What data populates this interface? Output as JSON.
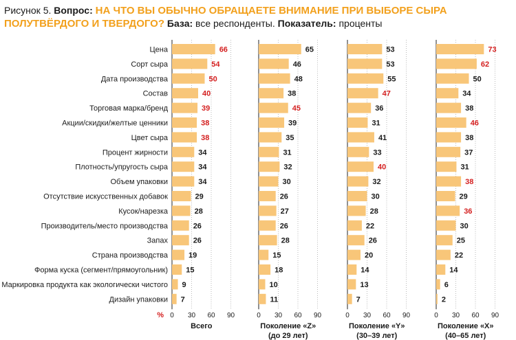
{
  "title": {
    "figure_label": "Рисунок 5.",
    "question_label": "Вопрос:",
    "question_text": "НА ЧТО ВЫ ОБЫЧНО ОБРАЩАЕТЕ ВНИМАНИЕ ПРИ ВЫБОРЕ СЫРА ПОЛУТВЁРДОГО И ТВЕРДОГО?",
    "base_label": "База:",
    "base_text": "все респонденты.",
    "indicator_label": "Показатель:",
    "indicator_text": "проценты"
  },
  "colors": {
    "bar": "#f8c679",
    "highlight": "#d42020",
    "text": "#1a1a1a",
    "heading": "#f2a01c"
  },
  "chart_data": {
    "type": "bar",
    "orientation": "horizontal",
    "unit_label": "%",
    "xlim": [
      0,
      90
    ],
    "ticks": [
      "0",
      "30",
      "60",
      "90"
    ],
    "categories": [
      "Цена",
      "Сорт сыра",
      "Дата производства",
      "Состав",
      "Торговая марка/бренд",
      "Акции/скидки/желтые ценники",
      "Цвет сыра",
      "Процент жирности",
      "Плотность/упругость сыра",
      "Объем упаковки",
      "Отсутствие искусственных добавок",
      "Кусок/нарезка",
      "Производитель/место производства",
      "Запах",
      "Страна производства",
      "Форма куска (сегмент/прямоугольник)",
      "Маркировка продукта как экологически чистого",
      "Дизайн упаковки"
    ],
    "series": [
      {
        "name": "Всего",
        "subtitle": "",
        "values": [
          66,
          54,
          50,
          40,
          39,
          38,
          38,
          34,
          34,
          34,
          29,
          28,
          26,
          26,
          19,
          15,
          9,
          7
        ],
        "highlighted": [
          0,
          1,
          2,
          3,
          4,
          5,
          6
        ]
      },
      {
        "name": "Поколение «Z»",
        "subtitle": "(до 29 лет)",
        "values": [
          65,
          46,
          48,
          38,
          45,
          39,
          35,
          31,
          32,
          30,
          26,
          27,
          26,
          28,
          15,
          18,
          10,
          11
        ],
        "highlighted": [
          4
        ]
      },
      {
        "name": "Поколение «Y»",
        "subtitle": "(30–39 лет)",
        "values": [
          53,
          53,
          55,
          47,
          36,
          31,
          41,
          33,
          40,
          32,
          30,
          28,
          22,
          26,
          20,
          14,
          13,
          7
        ],
        "highlighted": [
          3,
          8
        ]
      },
      {
        "name": "Поколение «X»",
        "subtitle": "(40–65 лет)",
        "values": [
          73,
          62,
          50,
          34,
          38,
          46,
          38,
          37,
          31,
          38,
          29,
          36,
          30,
          25,
          22,
          14,
          6,
          2
        ],
        "highlighted": [
          0,
          1,
          5,
          9,
          11
        ]
      }
    ]
  }
}
